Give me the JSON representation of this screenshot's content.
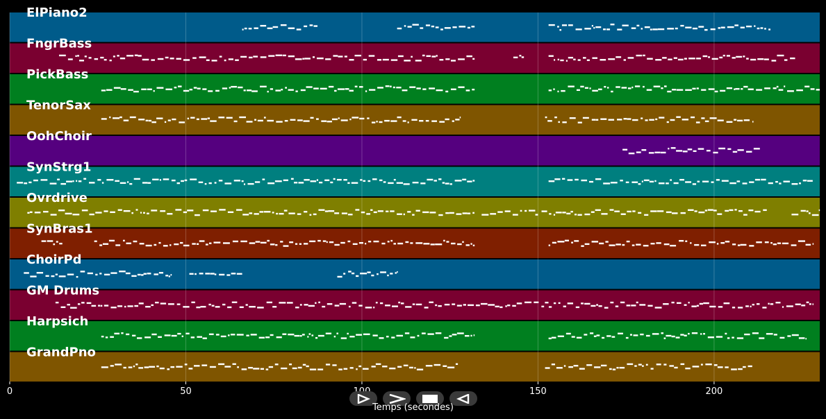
{
  "chart_data": {
    "type": "piano-roll",
    "title": "",
    "xlabel": "Temps (secondes)",
    "ylabel": "",
    "xlim": [
      0,
      230
    ],
    "xticks": [
      0,
      50,
      100,
      150,
      200
    ],
    "grid": true,
    "note_color": "#ffffff",
    "tracks": [
      {
        "name": "ElPiano2",
        "color": "#005b8a",
        "active": [
          [
            66,
            88
          ],
          [
            110,
            132
          ],
          [
            153,
            216
          ]
        ]
      },
      {
        "name": "FngrBass",
        "color": "#7a0030",
        "active": [
          [
            14,
            132
          ],
          [
            143,
            146
          ],
          [
            153,
            223
          ]
        ]
      },
      {
        "name": "PickBass",
        "color": "#007f1f",
        "active": [
          [
            26,
            132
          ],
          [
            153,
            230
          ]
        ]
      },
      {
        "name": "TenorSax",
        "color": "#7f5500",
        "active": [
          [
            26,
            128
          ],
          [
            152,
            211
          ]
        ]
      },
      {
        "name": "OohChoir",
        "color": "#55007f",
        "active": [
          [
            174,
            213
          ]
        ]
      },
      {
        "name": "SynStrg1",
        "color": "#007f7f",
        "active": [
          [
            2,
            132
          ],
          [
            153,
            228
          ]
        ]
      },
      {
        "name": "Ovrdrive",
        "color": "#7f7f00",
        "active": [
          [
            5,
            132
          ],
          [
            134,
            150
          ],
          [
            151,
            215
          ],
          [
            222,
            230
          ]
        ]
      },
      {
        "name": "SynBras1",
        "color": "#7f1f00",
        "active": [
          [
            9,
            15
          ],
          [
            24,
            132
          ],
          [
            153,
            228
          ]
        ]
      },
      {
        "name": "ChoirPd",
        "color": "#005b8a",
        "active": [
          [
            4,
            46
          ],
          [
            51,
            66
          ],
          [
            93,
            110
          ]
        ]
      },
      {
        "name": "GM Drums",
        "color": "#7a0030",
        "active": [
          [
            13,
            228
          ]
        ]
      },
      {
        "name": "Harpsich",
        "color": "#007f1f",
        "active": [
          [
            26,
            132
          ],
          [
            153,
            226
          ]
        ]
      },
      {
        "name": "GrandPno",
        "color": "#7f5500",
        "active": [
          [
            26,
            128
          ],
          [
            152,
            211
          ]
        ]
      }
    ]
  },
  "controls": [
    {
      "name": "play-button",
      "icon": "play-icon"
    },
    {
      "name": "fast-forward-button",
      "icon": "fast-forward-icon"
    },
    {
      "name": "stop-button",
      "icon": "stop-icon"
    },
    {
      "name": "rewind-button",
      "icon": "rewind-icon"
    }
  ]
}
